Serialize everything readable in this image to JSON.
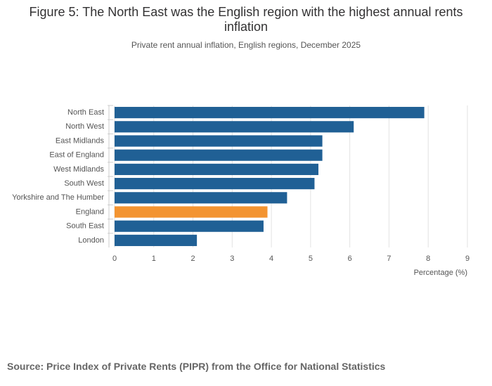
{
  "chart_data": {
    "type": "bar",
    "orientation": "horizontal",
    "title": "Figure 5: The North East was the English region with the highest annual rents inflation",
    "subtitle": "Private rent annual inflation, English regions, December 2025",
    "categories": [
      "North East",
      "North West",
      "East Midlands",
      "East of England",
      "West Midlands",
      "South West",
      "Yorkshire and The Humber",
      "England",
      "South East",
      "London"
    ],
    "values": [
      7.9,
      6.1,
      5.3,
      5.3,
      5.2,
      5.1,
      4.4,
      3.9,
      3.8,
      2.1
    ],
    "colors": [
      "#206095",
      "#206095",
      "#206095",
      "#206095",
      "#206095",
      "#206095",
      "#206095",
      "#f39431",
      "#206095",
      "#206095"
    ],
    "xlim": [
      0,
      9
    ],
    "xticks": [
      0,
      1,
      2,
      3,
      4,
      5,
      6,
      7,
      8,
      9
    ],
    "x_label": "Percentage (%)",
    "grid": true,
    "source": "Source: Price Index of Private Rents (PIPR) from the Office for National Statistics"
  }
}
